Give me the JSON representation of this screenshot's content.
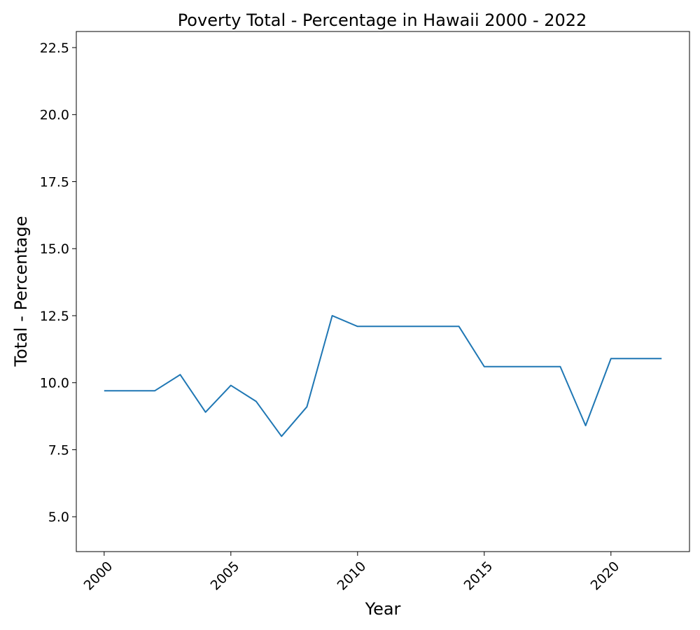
{
  "chart_data": {
    "type": "line",
    "title": "Poverty Total - Percentage in Hawaii 2000 - 2022",
    "xlabel": "Year",
    "ylabel": "Total - Percentage",
    "xlim": [
      1998.9,
      2023.1
    ],
    "ylim": [
      3.7,
      23.1
    ],
    "xticks": [
      2000,
      2005,
      2010,
      2015,
      2020
    ],
    "yticks": [
      5.0,
      7.5,
      10.0,
      12.5,
      15.0,
      17.5,
      20.0,
      22.5
    ],
    "xtick_rotation": 45,
    "grid": false,
    "legend": "none",
    "series": [
      {
        "color": "#1f77b4",
        "x": [
          2000,
          2001,
          2002,
          2003,
          2004,
          2005,
          2006,
          2007,
          2008,
          2009,
          2010,
          2011,
          2012,
          2013,
          2014,
          2015,
          2016,
          2017,
          2018,
          2019,
          2020,
          2021,
          2022
        ],
        "y": [
          9.7,
          9.7,
          9.7,
          10.3,
          8.9,
          9.9,
          9.3,
          8.0,
          9.1,
          12.5,
          12.1,
          12.1,
          12.1,
          12.1,
          12.1,
          10.6,
          10.6,
          10.6,
          10.6,
          8.4,
          10.9,
          10.9,
          10.9
        ]
      }
    ]
  }
}
